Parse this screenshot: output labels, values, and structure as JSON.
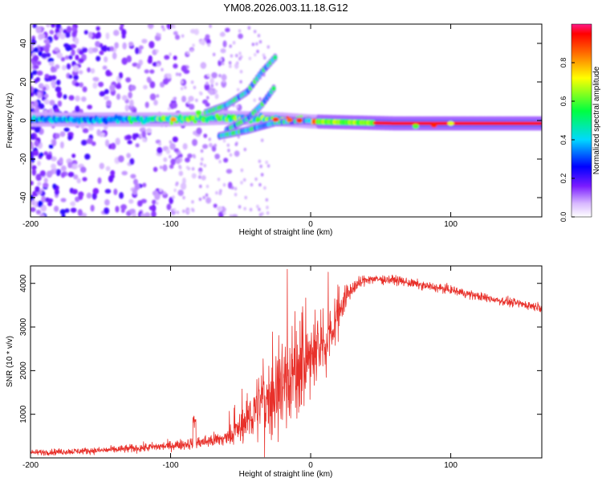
{
  "title": "YM08.2026.003.11.18.G12",
  "colors": {
    "line": "#e8302a",
    "frame": "#000000",
    "background": "#ffffff"
  },
  "chart_data": [
    {
      "type": "heatmap",
      "name": "spectrogram",
      "xlabel": "Height of straight line (km)",
      "ylabel": "Frequency (Hz)",
      "xlim": [
        -200,
        165
      ],
      "ylim": [
        -50,
        50
      ],
      "x_ticks": [
        -200,
        -100,
        0,
        100
      ],
      "x_tick_labels": [
        "-200",
        "-100",
        "0",
        "100"
      ],
      "y_ticks": [
        -40,
        -20,
        0,
        20,
        40
      ],
      "y_tick_labels": [
        "-40",
        "-20",
        "0",
        "20",
        "40"
      ],
      "features": {
        "main_band": [
          [
            -200,
            0.5
          ],
          [
            -100,
            0.5
          ],
          [
            -60,
            1.5
          ],
          [
            -20,
            0.5
          ],
          [
            0,
            -0.5
          ],
          [
            60,
            -1.5
          ],
          [
            165,
            -1.5
          ]
        ],
        "upper_branch_1": [
          [
            -75,
            4
          ],
          [
            -60,
            8
          ],
          [
            -45,
            15
          ],
          [
            -35,
            25
          ],
          [
            -25,
            33
          ]
        ],
        "upper_branch_2": [
          [
            -60,
            -5
          ],
          [
            -45,
            1
          ],
          [
            -35,
            8
          ],
          [
            -25,
            18
          ]
        ],
        "lower_branch": [
          [
            -65,
            -8
          ],
          [
            -45,
            -5
          ],
          [
            -25,
            -1
          ],
          [
            0,
            0
          ]
        ],
        "noise_region_km": [
          -200,
          -70
        ]
      },
      "colorbar": {
        "label": "Normalized spectral amplitude",
        "range": [
          0,
          1
        ],
        "ticks": [
          0.0,
          0.2,
          0.4,
          0.6,
          0.8
        ],
        "tick_labels": [
          "0.0",
          "0.2",
          "0.4",
          "0.6",
          "0.8"
        ]
      }
    },
    {
      "type": "line",
      "name": "snr",
      "xlabel": "Height of straight line (km)",
      "ylabel": "SNR (10 * v/v)",
      "xlim": [
        -200,
        165
      ],
      "ylim": [
        0,
        4400
      ],
      "x_ticks": [
        -200,
        -100,
        0,
        100
      ],
      "x_tick_labels": [
        "-200",
        "-100",
        "0",
        "100"
      ],
      "y_ticks": [
        1000,
        2000,
        3000,
        4000
      ],
      "y_tick_labels": [
        "1000",
        "2000",
        "3000",
        "4000"
      ],
      "envelope": {
        "x": [
          -200,
          -150,
          -120,
          -100,
          -80,
          -60,
          -50,
          -40,
          -30,
          -20,
          -10,
          0,
          10,
          20,
          30,
          40,
          60,
          80,
          100,
          120,
          140,
          165
        ],
        "mean": [
          120,
          170,
          230,
          280,
          350,
          450,
          700,
          1100,
          1400,
          1700,
          2000,
          2300,
          2600,
          3400,
          3900,
          4100,
          4080,
          3950,
          3850,
          3700,
          3580,
          3450
        ],
        "spread": [
          60,
          70,
          90,
          100,
          130,
          180,
          350,
          600,
          800,
          1000,
          1000,
          900,
          700,
          400,
          160,
          100,
          90,
          90,
          90,
          90,
          90,
          90
        ]
      }
    }
  ]
}
